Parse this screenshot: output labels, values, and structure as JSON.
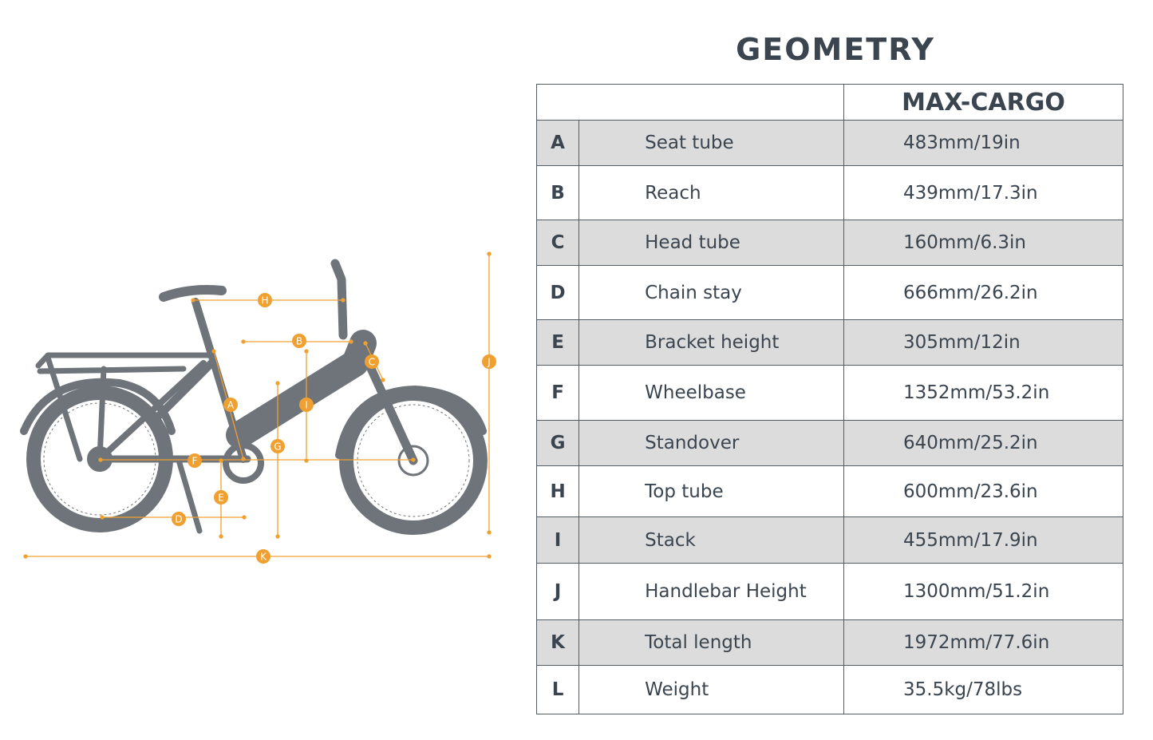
{
  "title": "GEOMETRY",
  "table": {
    "model": "MAX-CARGO",
    "rows": [
      {
        "letter": "A",
        "name": "Seat tube",
        "value": "483mm/19in"
      },
      {
        "letter": "B",
        "name": "Reach",
        "value": "439mm/17.3in"
      },
      {
        "letter": "C",
        "name": "Head tube",
        "value": "160mm/6.3in"
      },
      {
        "letter": "D",
        "name": "Chain stay",
        "value": "666mm/26.2in"
      },
      {
        "letter": "E",
        "name": "Bracket height",
        "value": "305mm/12in"
      },
      {
        "letter": "F",
        "name": "Wheelbase",
        "value": "1352mm/53.2in"
      },
      {
        "letter": "G",
        "name": "Standover",
        "value": "640mm/25.2in"
      },
      {
        "letter": "H",
        "name": "Top tube",
        "value": "600mm/23.6in"
      },
      {
        "letter": "I",
        "name": "Stack",
        "value": "455mm/17.9in"
      },
      {
        "letter": "J",
        "name": "Handlebar Height",
        "value": "1300mm/51.2in"
      },
      {
        "letter": "K",
        "name": "Total length",
        "value": "1972mm/77.6in"
      },
      {
        "letter": "L",
        "name": "Weight",
        "value": "35.5kg/78lbs"
      }
    ]
  },
  "diagram": {
    "markers": [
      "A",
      "B",
      "C",
      "D",
      "E",
      "F",
      "G",
      "H",
      "I",
      "J",
      "K"
    ],
    "colors": {
      "bike": "#6e7479",
      "dimension": "#f0a030"
    }
  }
}
